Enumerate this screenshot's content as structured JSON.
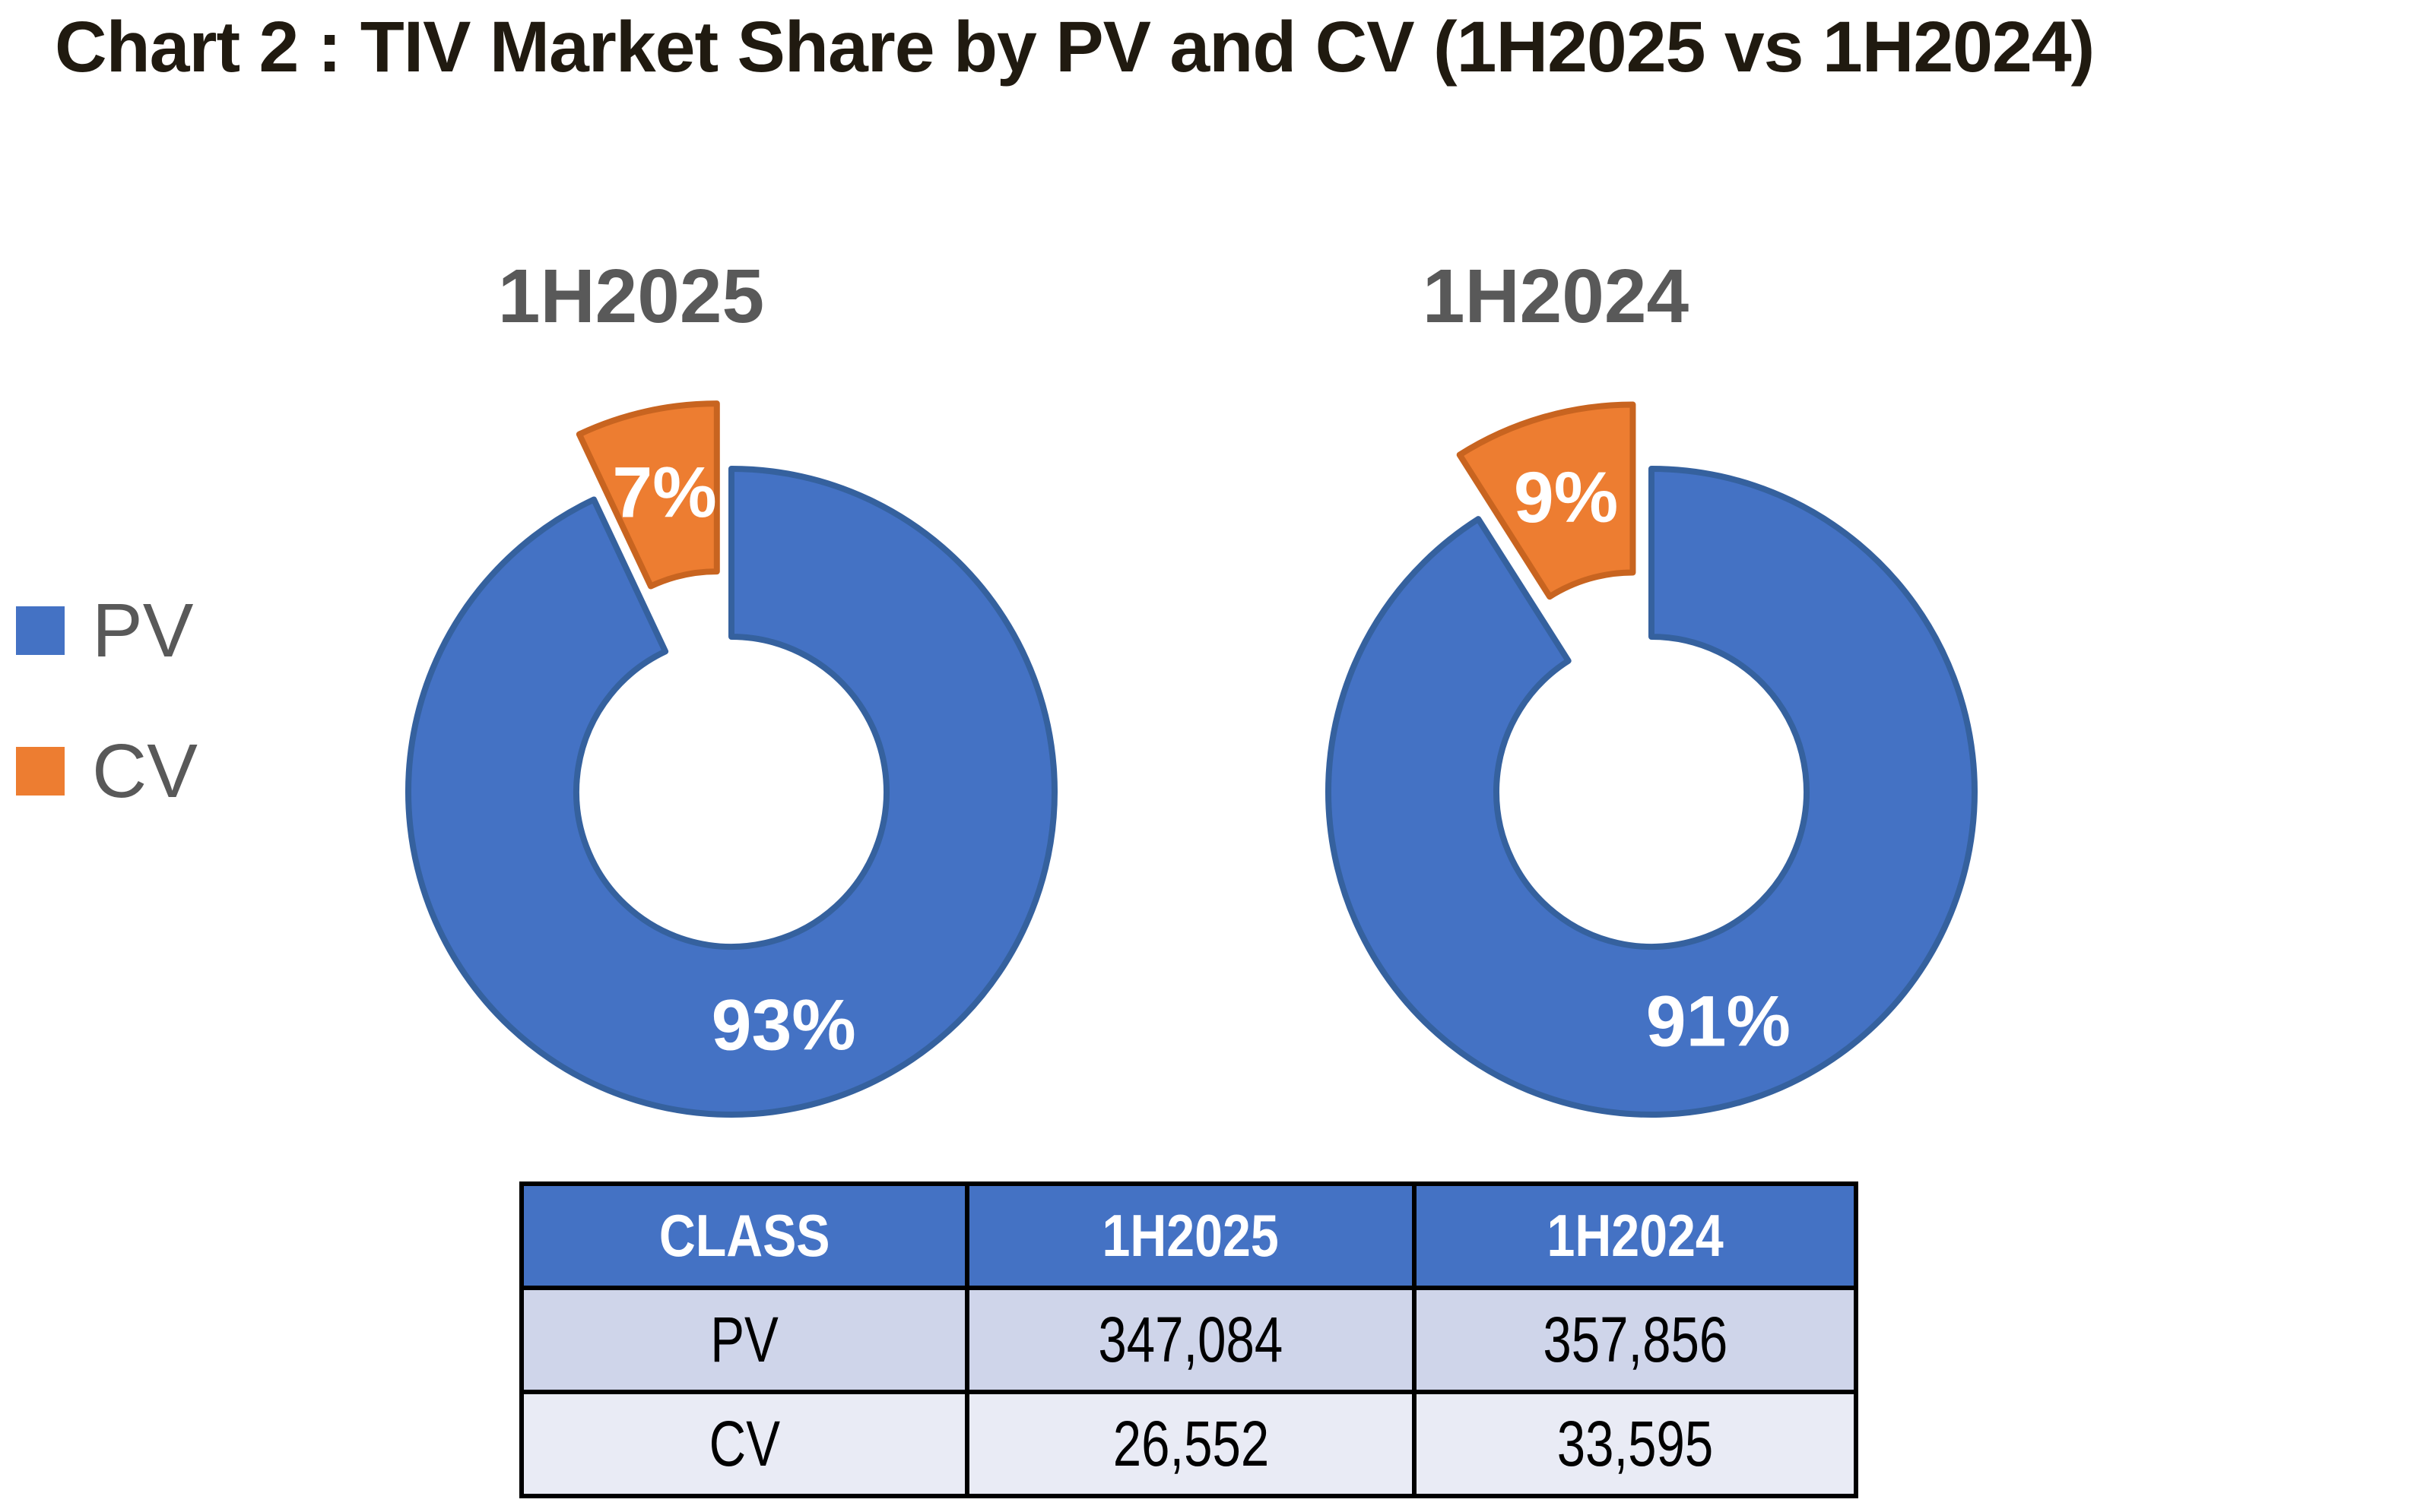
{
  "title": "Chart 2 : TIV Market Share by PV and CV (1H2025 vs 1H2024)",
  "legend": {
    "position": "left",
    "items": [
      {
        "label": "PV",
        "color": "#4472C4"
      },
      {
        "label": "CV",
        "color": "#ED7D31"
      }
    ]
  },
  "chart_data": [
    {
      "type": "pie",
      "subtype": "doughnut-exploded",
      "title": "1H2025",
      "categories": [
        "PV",
        "CV"
      ],
      "values": [
        93,
        7
      ],
      "labels": [
        "93%",
        "7%"
      ],
      "exploded": [
        false,
        true
      ],
      "colors": [
        "#4472C4",
        "#ED7D31"
      ],
      "border_colors": [
        "#35619E",
        "#C86420"
      ],
      "units": "percent",
      "legend_position": "left",
      "start_angle": "top",
      "direction": "clockwise"
    },
    {
      "type": "pie",
      "subtype": "doughnut-exploded",
      "title": "1H2024",
      "categories": [
        "PV",
        "CV"
      ],
      "values": [
        91,
        9
      ],
      "labels": [
        "91%",
        "9%"
      ],
      "exploded": [
        false,
        true
      ],
      "colors": [
        "#4472C4",
        "#ED7D31"
      ],
      "border_colors": [
        "#35619E",
        "#C86420"
      ],
      "units": "percent",
      "legend_position": "none",
      "start_angle": "top",
      "direction": "clockwise"
    }
  ],
  "table": {
    "headers": [
      "CLASS",
      "1H2025",
      "1H2024"
    ],
    "rows": [
      [
        "PV",
        "347,084",
        "357,856"
      ],
      [
        "CV",
        "26,552",
        "33,595"
      ]
    ],
    "header_bg": "#4472C4",
    "header_text_color": "#FFFFFF",
    "row_colors": [
      "#CFD5EA",
      "#E9EBF5"
    ],
    "border_color": "#000000"
  },
  "colors": {
    "pv_fill": "#4472C4",
    "pv_border": "#35619E",
    "cv_fill": "#ED7D31",
    "cv_border": "#C86420",
    "title_text": "#201A10",
    "subtitle_text": "#595959",
    "data_label_text": "#FFFFFF"
  }
}
